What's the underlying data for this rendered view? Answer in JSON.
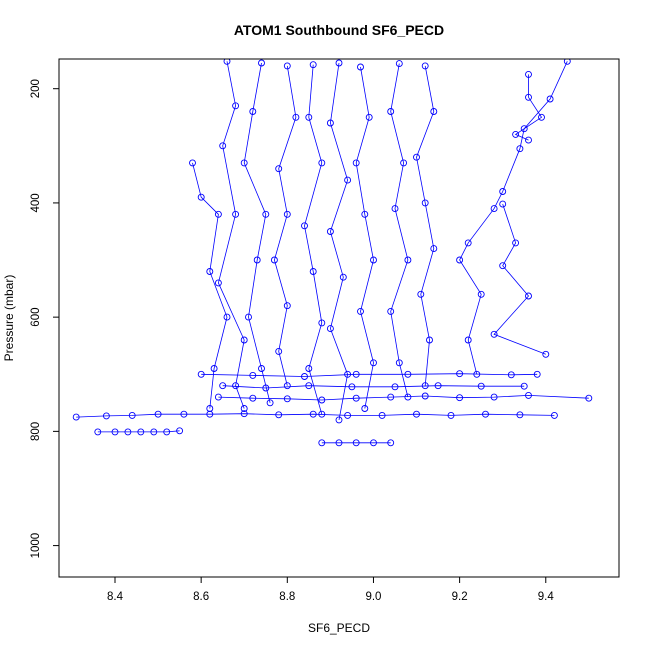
{
  "chart_data": {
    "type": "scatter",
    "title": "ATOM1 Southbound SF6_PECD",
    "xlabel": "SF6_PECD",
    "ylabel": "Pressure (mbar)",
    "xlim": [
      8.27,
      9.57
    ],
    "ylim": [
      1055,
      148
    ],
    "y_reversed": true,
    "x_ticks": [
      "8.4",
      "8.6",
      "8.8",
      "9.0",
      "9.2",
      "9.4"
    ],
    "y_ticks": [
      "200",
      "400",
      "600",
      "800",
      "1000"
    ],
    "series_color": "#0000ff",
    "series": [
      {
        "values": [
          [
            8.36,
            801
          ],
          [
            8.4,
            801
          ],
          [
            8.43,
            801
          ],
          [
            8.46,
            801
          ],
          [
            8.49,
            801
          ],
          [
            8.52,
            801
          ],
          [
            8.55,
            799
          ]
        ]
      },
      {
        "values": [
          [
            8.31,
            775
          ],
          [
            8.38,
            773
          ],
          [
            8.44,
            772
          ],
          [
            8.5,
            770
          ],
          [
            8.56,
            770
          ],
          [
            8.62,
            770
          ],
          [
            8.7,
            769
          ],
          [
            8.78,
            771
          ],
          [
            8.86,
            770
          ],
          [
            8.94,
            772
          ],
          [
            9.02,
            772
          ],
          [
            9.1,
            770
          ],
          [
            9.18,
            772
          ],
          [
            9.26,
            770
          ],
          [
            9.34,
            771
          ],
          [
            9.42,
            772
          ]
        ]
      },
      {
        "values": [
          [
            8.88,
            820
          ],
          [
            8.92,
            820
          ],
          [
            8.96,
            820
          ],
          [
            9.0,
            820
          ],
          [
            9.04,
            820
          ]
        ]
      },
      {
        "values": [
          [
            8.64,
            740
          ],
          [
            8.72,
            742
          ],
          [
            8.8,
            743
          ],
          [
            8.88,
            745
          ],
          [
            8.96,
            742
          ],
          [
            9.04,
            740
          ],
          [
            9.12,
            738
          ],
          [
            9.2,
            741
          ],
          [
            9.28,
            740
          ],
          [
            9.36,
            737
          ],
          [
            9.5,
            742
          ]
        ]
      },
      {
        "values": [
          [
            8.6,
            700
          ],
          [
            8.72,
            702
          ],
          [
            8.84,
            704
          ],
          [
            8.96,
            700
          ],
          [
            9.08,
            700
          ],
          [
            9.2,
            699
          ],
          [
            9.32,
            701
          ],
          [
            9.38,
            700
          ]
        ]
      },
      {
        "values": [
          [
            8.65,
            720
          ],
          [
            8.75,
            724
          ],
          [
            8.85,
            720
          ],
          [
            8.95,
            722
          ],
          [
            9.05,
            722
          ],
          [
            9.15,
            720
          ],
          [
            9.25,
            721
          ],
          [
            9.35,
            721
          ]
        ]
      },
      {
        "values": [
          [
            8.66,
            152
          ],
          [
            8.68,
            230
          ],
          [
            8.65,
            300
          ],
          [
            8.68,
            420
          ],
          [
            8.64,
            540
          ],
          [
            8.7,
            640
          ],
          [
            8.68,
            720
          ],
          [
            8.7,
            760
          ]
        ]
      },
      {
        "values": [
          [
            8.74,
            155
          ],
          [
            8.72,
            240
          ],
          [
            8.7,
            330
          ],
          [
            8.75,
            420
          ],
          [
            8.73,
            500
          ],
          [
            8.71,
            600
          ],
          [
            8.74,
            690
          ],
          [
            8.76,
            750
          ]
        ]
      },
      {
        "values": [
          [
            8.8,
            160
          ],
          [
            8.82,
            250
          ],
          [
            8.78,
            340
          ],
          [
            8.8,
            420
          ],
          [
            8.77,
            500
          ],
          [
            8.8,
            580
          ],
          [
            8.78,
            660
          ],
          [
            8.8,
            720
          ]
        ]
      },
      {
        "values": [
          [
            8.86,
            158
          ],
          [
            8.85,
            250
          ],
          [
            8.88,
            330
          ],
          [
            8.84,
            440
          ],
          [
            8.86,
            520
          ],
          [
            8.88,
            610
          ],
          [
            8.85,
            690
          ],
          [
            8.88,
            770
          ]
        ]
      },
      {
        "values": [
          [
            8.92,
            155
          ],
          [
            8.9,
            260
          ],
          [
            8.94,
            360
          ],
          [
            8.9,
            450
          ],
          [
            8.93,
            530
          ],
          [
            8.9,
            620
          ],
          [
            8.94,
            700
          ],
          [
            8.92,
            780
          ]
        ]
      },
      {
        "values": [
          [
            8.97,
            162
          ],
          [
            8.99,
            250
          ],
          [
            8.96,
            330
          ],
          [
            8.98,
            420
          ],
          [
            9.0,
            500
          ],
          [
            8.97,
            590
          ],
          [
            9.0,
            680
          ],
          [
            8.98,
            760
          ]
        ]
      },
      {
        "values": [
          [
            9.06,
            156
          ],
          [
            9.04,
            240
          ],
          [
            9.07,
            330
          ],
          [
            9.05,
            410
          ],
          [
            9.08,
            500
          ],
          [
            9.04,
            590
          ],
          [
            9.06,
            680
          ],
          [
            9.08,
            740
          ]
        ]
      },
      {
        "values": [
          [
            9.12,
            160
          ],
          [
            9.14,
            240
          ],
          [
            9.1,
            320
          ],
          [
            9.12,
            400
          ],
          [
            9.14,
            480
          ],
          [
            9.11,
            560
          ],
          [
            9.13,
            640
          ],
          [
            9.12,
            720
          ]
        ]
      },
      {
        "values": [
          [
            9.45,
            152
          ],
          [
            9.41,
            218
          ],
          [
            9.35,
            270
          ],
          [
            9.34,
            305
          ],
          [
            9.3,
            380
          ],
          [
            9.28,
            410
          ],
          [
            9.22,
            470
          ],
          [
            9.2,
            500
          ],
          [
            9.25,
            560
          ],
          [
            9.22,
            640
          ],
          [
            9.24,
            700
          ]
        ]
      },
      {
        "values": [
          [
            9.36,
            175
          ],
          [
            9.36,
            215
          ],
          [
            9.39,
            250
          ],
          [
            9.33,
            280
          ],
          [
            9.36,
            290
          ]
        ]
      },
      {
        "values": [
          [
            8.58,
            330
          ],
          [
            8.6,
            390
          ],
          [
            8.64,
            420
          ],
          [
            8.62,
            520
          ],
          [
            8.66,
            600
          ],
          [
            8.63,
            690
          ],
          [
            8.62,
            760
          ]
        ]
      },
      {
        "values": [
          [
            9.3,
            402
          ],
          [
            9.33,
            470
          ],
          [
            9.3,
            510
          ],
          [
            9.36,
            563
          ],
          [
            9.28,
            630
          ],
          [
            9.4,
            665
          ]
        ]
      }
    ]
  }
}
